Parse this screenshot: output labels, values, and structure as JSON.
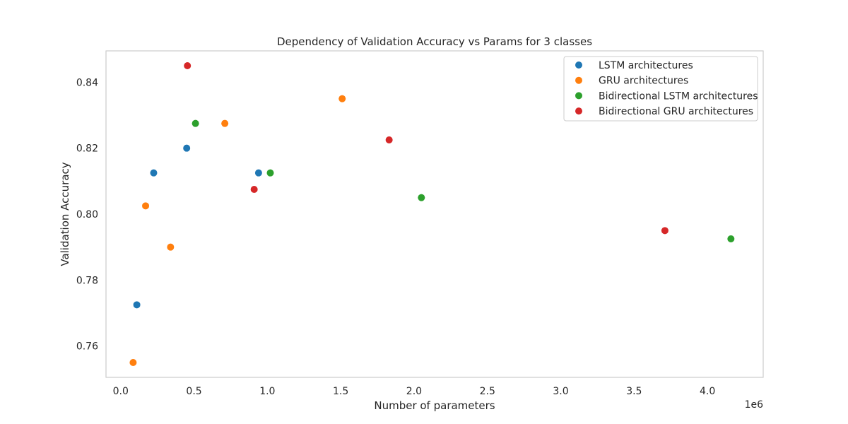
{
  "chart_data": {
    "type": "scatter",
    "title": "Dependency of Validation Accuracy vs Params for 3 classes",
    "xlabel": "Number of parameters",
    "ylabel": "Validation Accuracy",
    "x_offset_label": "1e6",
    "xlim": [
      -0.1,
      4.38
    ],
    "ylim": [
      0.7505,
      0.8495
    ],
    "x_ticks": [
      0.0,
      0.5,
      1.0,
      1.5,
      2.0,
      2.5,
      3.0,
      3.5,
      4.0
    ],
    "x_tick_labels": [
      "0.0",
      "0.5",
      "1.0",
      "1.5",
      "2.0",
      "2.5",
      "3.0",
      "3.5",
      "4.0"
    ],
    "y_ticks": [
      0.76,
      0.78,
      0.8,
      0.82,
      0.84
    ],
    "y_tick_labels": [
      "0.76",
      "0.78",
      "0.80",
      "0.82",
      "0.84"
    ],
    "grid": false,
    "legend_position": "top-right",
    "series": [
      {
        "name": "LSTM architectures",
        "color": "#1f77b4",
        "points": [
          [
            0.11,
            0.7725
          ],
          [
            0.225,
            0.8125
          ],
          [
            0.45,
            0.82
          ],
          [
            0.94,
            0.8125
          ]
        ]
      },
      {
        "name": "GRU architectures",
        "color": "#ff7f0e",
        "points": [
          [
            0.085,
            0.755
          ],
          [
            0.17,
            0.8025
          ],
          [
            0.34,
            0.79
          ],
          [
            0.71,
            0.8275
          ],
          [
            1.51,
            0.835
          ]
        ]
      },
      {
        "name": "Bidirectional LSTM architectures",
        "color": "#2ca02c",
        "points": [
          [
            0.51,
            0.8275
          ],
          [
            1.02,
            0.8125
          ],
          [
            2.05,
            0.805
          ],
          [
            4.16,
            0.7925
          ]
        ]
      },
      {
        "name": "Bidirectional GRU architectures",
        "color": "#d62728",
        "points": [
          [
            0.455,
            0.845
          ],
          [
            0.91,
            0.8075
          ],
          [
            1.83,
            0.8225
          ],
          [
            3.71,
            0.795
          ]
        ]
      }
    ]
  }
}
